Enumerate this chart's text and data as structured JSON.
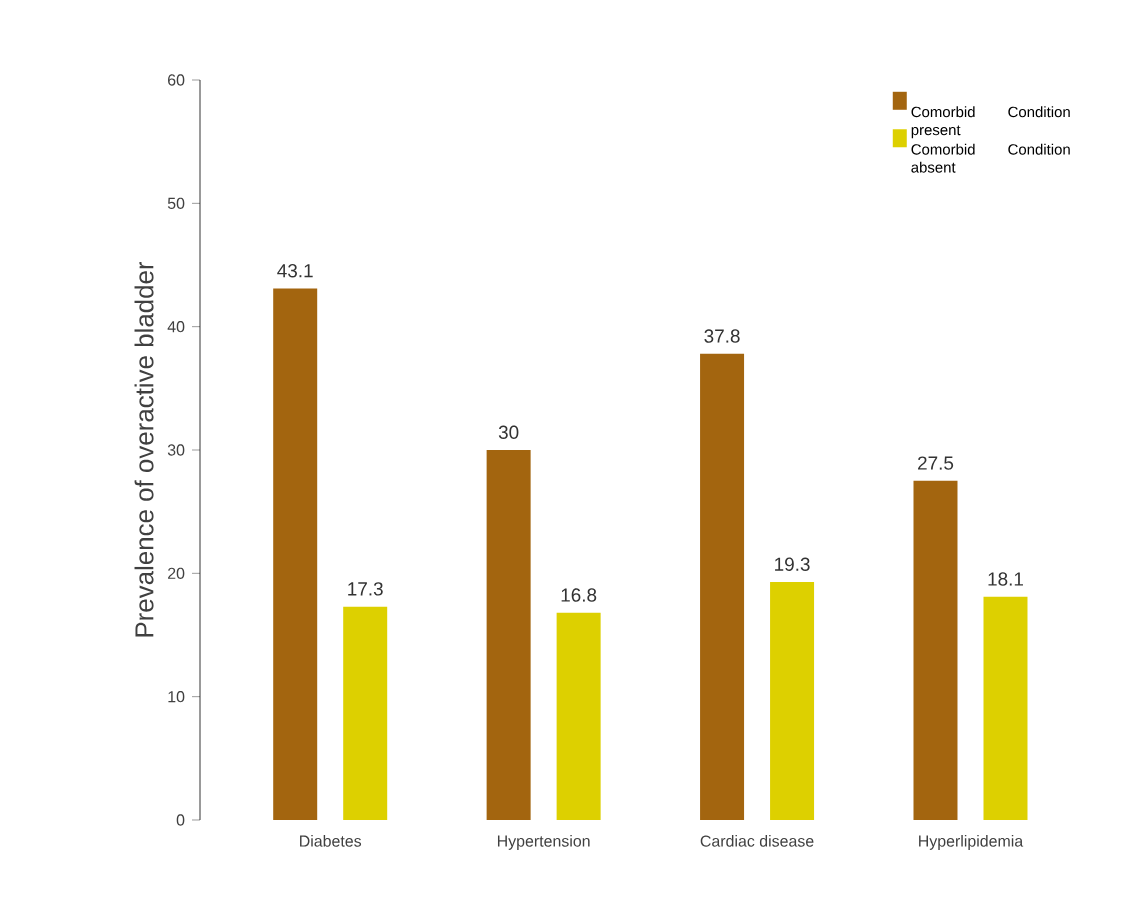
{
  "chart_data": {
    "type": "bar",
    "ylabel": "Prevalence of overactive bladder",
    "categories": [
      "Diabetes",
      "Hypertension",
      "Cardiac disease",
      "Hyperlipidemia"
    ],
    "series": [
      {
        "name": "Comorbid Condition present",
        "color": "#a3650f",
        "values": [
          43.1,
          30,
          37.8,
          27.5
        ]
      },
      {
        "name": "Comorbid Condition absent",
        "color": "#ddd000",
        "values": [
          17.3,
          16.8,
          19.3,
          18.1
        ]
      }
    ],
    "ylim": [
      0,
      60
    ],
    "yticks": [
      0,
      10,
      20,
      30,
      40,
      50,
      60
    ],
    "data_labels": true,
    "legend": "top right",
    "grid": false
  }
}
